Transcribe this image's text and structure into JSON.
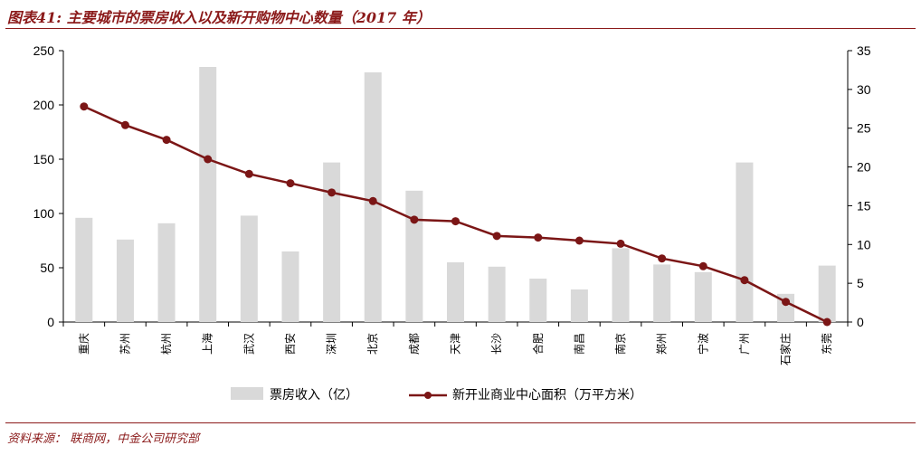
{
  "title": "图表41: 主要城市的票房收入以及新开购物中心数量（2017 年）",
  "source": "资料来源：  联商网，中金公司研究部",
  "colors": {
    "bar": "#d9d9d9",
    "line": "#7b1616",
    "accent": "#8b1a1a"
  },
  "chart_data": {
    "type": "bar",
    "categories": [
      "重庆",
      "苏州",
      "杭州",
      "上海",
      "武汉",
      "西安",
      "深圳",
      "北京",
      "成都",
      "天津",
      "长沙",
      "合肥",
      "南昌",
      "南京",
      "郑州",
      "宁波",
      "广州",
      "石家庄",
      "东莞"
    ],
    "series": [
      {
        "name": "票房收入（亿）",
        "type": "bar",
        "axis": "left",
        "values": [
          96,
          76,
          91,
          235,
          98,
          65,
          147,
          230,
          121,
          55,
          51,
          40,
          30,
          68,
          53,
          46,
          147,
          26,
          52
        ]
      },
      {
        "name": "新开业商业中心面积（万平方米）",
        "type": "line",
        "axis": "right",
        "values": [
          27.8,
          25.4,
          23.5,
          21.0,
          19.1,
          17.9,
          16.7,
          15.6,
          13.2,
          13.0,
          11.1,
          10.9,
          10.5,
          10.1,
          8.2,
          7.2,
          5.4,
          2.6,
          0.0
        ]
      }
    ],
    "y_left": {
      "min": 0,
      "max": 250,
      "ticks": [
        0,
        50,
        100,
        150,
        200,
        250
      ]
    },
    "y_right": {
      "min": 0,
      "max": 35,
      "ticks": [
        0,
        5,
        10,
        15,
        20,
        25,
        30,
        35
      ]
    },
    "legend_position": "bottom"
  }
}
